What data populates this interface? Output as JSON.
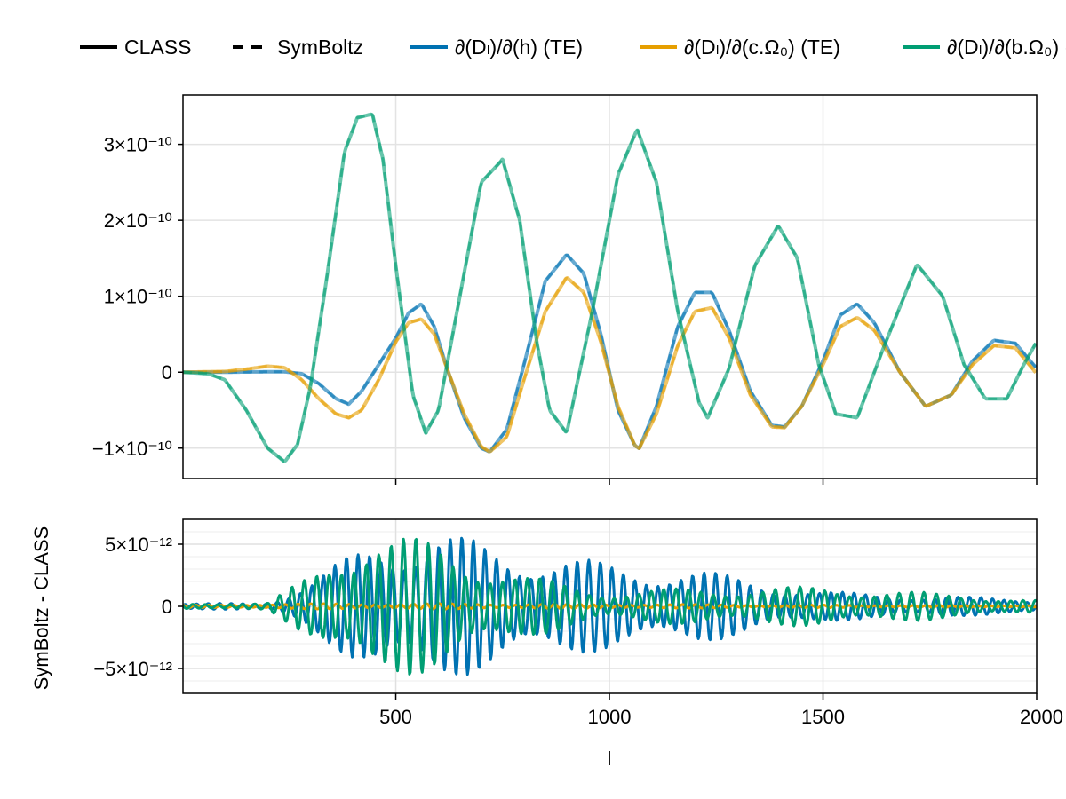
{
  "legend": [
    {
      "label": "CLASS",
      "style": "solid",
      "color": "#000000"
    },
    {
      "label": "SymBoltz",
      "style": "dashed",
      "color": "#000000"
    },
    {
      "label": "∂(Dₗ)/∂(h) (TE)",
      "style": "solid",
      "color": "#0072b2"
    },
    {
      "label": "∂(Dₗ)/∂(c.Ω₀) (TE)",
      "style": "solid",
      "color": "#e69f00"
    },
    {
      "label": "∂(Dₗ)/∂(b.Ω₀) (TE)",
      "style": "solid",
      "color": "#009e73"
    }
  ],
  "chart_data": [
    {
      "type": "line",
      "panel": "top",
      "xlim": [
        2,
        2000
      ],
      "ylim": [
        -1.4e-10,
        3.65e-10
      ],
      "xticks": [
        500,
        1000,
        1500,
        2000
      ],
      "yticks": [
        -1e-10,
        0,
        1e-10,
        2e-10,
        3e-10
      ],
      "ytick_labels": [
        "−1×10⁻¹⁰",
        "0",
        "1×10⁻¹⁰",
        "2×10⁻¹⁰",
        "3×10⁻¹⁰"
      ],
      "grid": true,
      "series": [
        {
          "name": "∂(Dₗ)/∂(h) (TE)",
          "color": "#0072b2",
          "x": [
            2,
            100,
            150,
            200,
            240,
            280,
            320,
            360,
            390,
            420,
            460,
            500,
            530,
            560,
            590,
            620,
            660,
            700,
            720,
            760,
            800,
            850,
            900,
            940,
            980,
            1020,
            1060,
            1070,
            1110,
            1160,
            1200,
            1240,
            1280,
            1330,
            1380,
            1410,
            1450,
            1500,
            1540,
            1580,
            1620,
            1680,
            1740,
            1800,
            1850,
            1900,
            1950,
            2000
          ],
          "y": [
            0,
            0,
            3e-13,
            5e-13,
            5e-13,
            -2e-12,
            -1.5e-11,
            -3.5e-11,
            -4.2e-11,
            -2.5e-11,
            1e-11,
            4.5e-11,
            7.8e-11,
            9e-11,
            6e-11,
            5e-12,
            -6e-11,
            -1e-10,
            -1.05e-10,
            -7.5e-11,
            1e-11,
            1.2e-10,
            1.55e-10,
            1.3e-10,
            5e-11,
            -5e-11,
            -9.7e-11,
            -1e-10,
            -4.5e-11,
            6e-11,
            1.05e-10,
            1.05e-10,
            5.5e-11,
            -2.5e-11,
            -7e-11,
            -7.2e-11,
            -4.5e-11,
            1.5e-11,
            7.5e-11,
            9e-11,
            6.5e-11,
            0.0,
            -4.5e-11,
            -3e-11,
            1.5e-11,
            4.2e-11,
            3.8e-11,
            5e-12
          ]
        },
        {
          "name": "∂(Dₗ)/∂(c.Ω₀) (TE)",
          "color": "#e69f00",
          "x": [
            2,
            100,
            150,
            200,
            240,
            280,
            320,
            360,
            390,
            420,
            460,
            500,
            530,
            560,
            590,
            620,
            660,
            700,
            720,
            760,
            800,
            850,
            900,
            940,
            980,
            1020,
            1060,
            1070,
            1110,
            1160,
            1200,
            1240,
            1280,
            1330,
            1380,
            1410,
            1450,
            1500,
            1540,
            1580,
            1620,
            1680,
            1740,
            1800,
            1850,
            1900,
            1950,
            2000
          ],
          "y": [
            0,
            1e-12,
            4e-12,
            8e-12,
            6e-12,
            -1e-11,
            -3.5e-11,
            -5.5e-11,
            -6e-11,
            -5e-11,
            -1e-11,
            4e-11,
            6.5e-11,
            7e-11,
            5e-11,
            5e-12,
            -5.5e-11,
            -9.8e-11,
            -1.05e-10,
            -8.5e-11,
            -1e-11,
            8e-11,
            1.25e-10,
            1.05e-10,
            4e-11,
            -4.5e-11,
            -9.7e-11,
            -1e-10,
            -5.5e-11,
            3.5e-11,
            8e-11,
            8.5e-11,
            4.5e-11,
            -3e-11,
            -7.2e-11,
            -7.3e-11,
            -4.5e-11,
            1e-11,
            6e-11,
            7.2e-11,
            5.5e-11,
            0.0,
            -4.5e-11,
            -3e-11,
            1e-11,
            3.5e-11,
            3.2e-11,
            -2e-12
          ]
        },
        {
          "name": "∂(Dₗ)/∂(b.Ω₀) (TE)",
          "color": "#009e73",
          "x": [
            2,
            60,
            100,
            150,
            200,
            240,
            270,
            300,
            340,
            380,
            410,
            445,
            470,
            500,
            540,
            570,
            600,
            650,
            700,
            750,
            790,
            830,
            860,
            900,
            960,
            1020,
            1065,
            1110,
            1160,
            1210,
            1230,
            1280,
            1340,
            1395,
            1440,
            1490,
            1530,
            1580,
            1640,
            1720,
            1780,
            1830,
            1880,
            1930,
            1970,
            2000
          ],
          "y": [
            0,
            -2e-12,
            -1e-11,
            -5e-11,
            -1e-10,
            -1.18e-10,
            -9.5e-11,
            -2e-11,
            1.3e-10,
            2.9e-10,
            3.35e-10,
            3.4e-10,
            2.8e-10,
            1.4e-10,
            -3e-11,
            -8e-11,
            -5e-11,
            1e-10,
            2.5e-10,
            2.8e-10,
            2e-10,
            4e-11,
            -5e-11,
            -8e-11,
            8e-11,
            2.6e-10,
            3.2e-10,
            2.5e-10,
            8e-11,
            -4e-11,
            -6e-11,
            5e-12,
            1.4e-10,
            1.93e-10,
            1.5e-10,
            1e-11,
            -5.5e-11,
            -6e-11,
            3e-11,
            1.42e-10,
            1e-10,
            1e-11,
            -3.5e-11,
            -3.5e-11,
            1e-11,
            4e-11
          ]
        }
      ]
    },
    {
      "type": "line",
      "panel": "bottom",
      "ylabel": "SymBoltz - CLASS",
      "xlabel": "l",
      "xlim": [
        2,
        2000
      ],
      "ylim": [
        -7e-12,
        7e-12
      ],
      "xticks": [
        500,
        1000,
        1500,
        2000
      ],
      "xtick_labels": [
        "500",
        "1000",
        "1500",
        "2000"
      ],
      "yticks": [
        -5e-12,
        0,
        5e-12
      ],
      "ytick_labels": [
        "−5×10⁻¹²",
        "0",
        "5×10⁻¹²"
      ],
      "grid": true,
      "envelope_note_free": true,
      "series": [
        {
          "name": "∂(Dₗ)/∂(h) (TE)",
          "color": "#0072b2",
          "amplitude_at_x": {
            "x": [
              2,
              200,
              300,
              450,
              600,
              800,
              1000,
              1200,
              1500,
              1800,
              2000
            ],
            "amp": [
              2e-13,
              3e-13,
              2e-12,
              5.5e-12,
              6e-12,
              4.5e-12,
              3.5e-12,
              3e-12,
              1.2e-12,
              8e-13,
              6e-13
            ]
          },
          "period": 27
        },
        {
          "name": "∂(Dₗ)/∂(c.Ω₀) (TE)",
          "color": "#e69f00",
          "amplitude_at_x": {
            "x": [
              2,
              400,
              800,
              1200,
              1600,
              2000
            ],
            "amp": [
              1e-13,
              2.5e-13,
              2e-13,
              1.5e-13,
              1e-13,
              8e-14
            ]
          },
          "period": 30
        },
        {
          "name": "∂(Dₗ)/∂(b.Ω₀) (TE)",
          "color": "#009e73",
          "amplitude_at_x": {
            "x": [
              2,
              200,
              300,
              440,
              600,
              800,
              1000,
              1200,
              1500,
              1800,
              2000
            ],
            "amp": [
              2e-13,
              3e-13,
              2.5e-12,
              6.5e-12,
              5e-12,
              2.5e-12,
              1.2e-12,
              1.5e-12,
              1.6e-12,
              1e-12,
              5e-13
            ]
          },
          "period": 29
        }
      ]
    }
  ]
}
